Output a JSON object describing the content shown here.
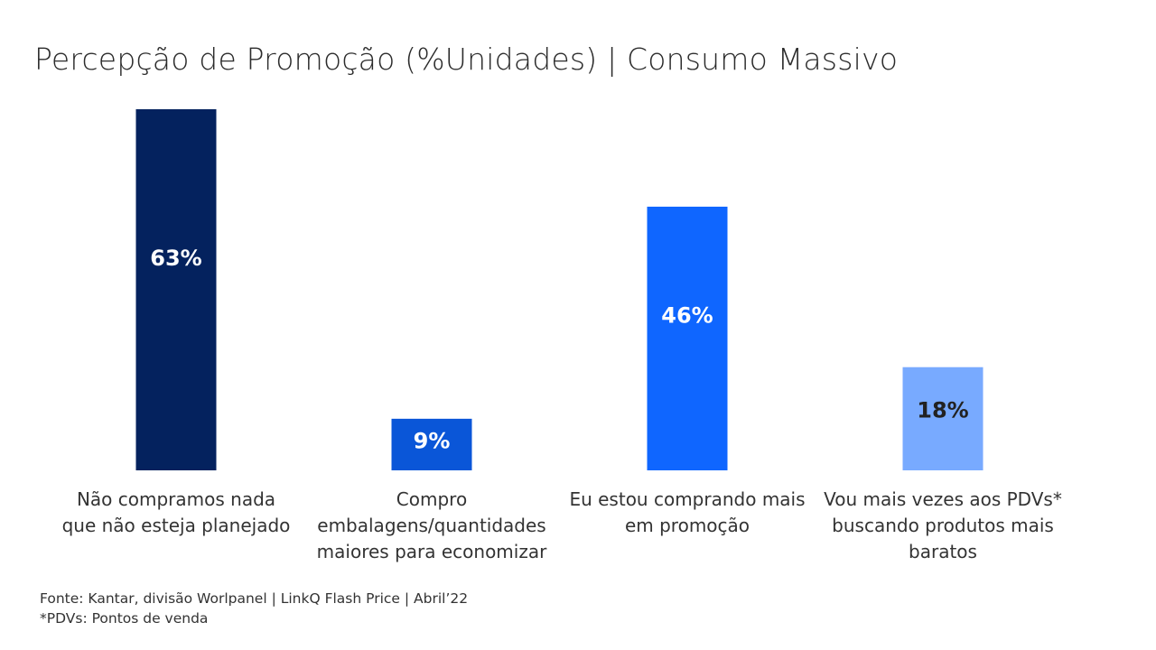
{
  "header": {
    "title": "Percepção de Promoção (%Unidades) | Consumo Massivo"
  },
  "chart_data": {
    "type": "bar",
    "title": "Percepção de Promoção (%Unidades) | Consumo Massivo",
    "xlabel": "",
    "ylabel": "",
    "ylim": [
      0,
      63
    ],
    "grid": false,
    "categories": [
      [
        "Não compramos nada",
        "que não esteja planejado"
      ],
      [
        "Compro",
        "embalagens/quantidades",
        "maiores para economizar"
      ],
      [
        "Eu estou comprando mais",
        "em promoção"
      ],
      [
        "Vou mais vezes aos PDVs*",
        "buscando produtos mais",
        "baratos"
      ]
    ],
    "values": [
      63,
      9,
      46,
      18
    ],
    "data_labels": [
      "63%",
      "9%",
      "46%",
      "18%"
    ],
    "bar_colors": [
      "#04225e",
      "#0a56d8",
      "#0f66ff",
      "#78aaff"
    ],
    "label_colors": [
      "#ffffff",
      "#ffffff",
      "#ffffff",
      "#222222"
    ]
  },
  "footer": {
    "source": "Fonte: Kantar, divisão Worlpanel | LinkQ Flash Price | Abril’22",
    "note": "*PDVs: Pontos de venda"
  }
}
